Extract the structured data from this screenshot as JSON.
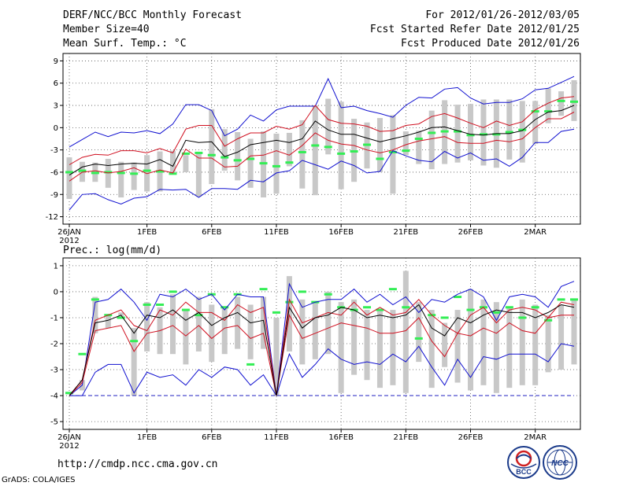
{
  "header": {
    "title": "DERF/NCC/BCC Monthly Forecast",
    "member_size": "Member Size=40",
    "variable": "Mean Surf. Temp.: °C",
    "period": "For 2012/01/26-2012/03/05",
    "started": "Fcst Started Refer Date 2012/01/25",
    "produced": "Fcst Produced Date 2012/01/26"
  },
  "footer": {
    "url": "http://cmdp.ncc.cma.gov.cn",
    "credit": "GrADS: COLA/IGES",
    "logo_bcc": "BCC",
    "logo_ncc": "NCC"
  },
  "colors": {
    "blue": "#1010d0",
    "red": "#d01020",
    "black": "#000000",
    "green": "#33ee55",
    "gray": "#c8c8c8",
    "dashed": "#2020c0"
  },
  "chart_data": [
    {
      "type": "ensemble-boxplot",
      "title": "Mean Surf. Temp.: °C",
      "ylim": [
        -13,
        10
      ],
      "yticks": [
        9,
        6,
        3,
        0,
        -3,
        -6,
        -9,
        -12
      ],
      "xticks": [
        {
          "day": 0,
          "label": "26JAN"
        },
        {
          "day": 6,
          "label": "1FEB"
        },
        {
          "day": 11,
          "label": "6FEB"
        },
        {
          "day": 16,
          "label": "11FEB"
        },
        {
          "day": 21,
          "label": "16FEB"
        },
        {
          "day": 26,
          "label": "21FEB"
        },
        {
          "day": 31,
          "label": "26FEB"
        },
        {
          "day": 36,
          "label": "2MAR"
        }
      ],
      "year_label": "2012",
      "days": [
        0,
        1,
        2,
        3,
        4,
        5,
        6,
        7,
        8,
        9,
        10,
        11,
        12,
        13,
        14,
        15,
        16,
        17,
        18,
        19,
        20,
        21,
        22,
        23,
        24,
        25,
        26,
        27,
        28,
        29,
        30,
        31,
        32,
        33,
        34,
        35,
        36,
        37,
        38,
        39
      ],
      "max": [
        -2.6,
        -1.6,
        -0.6,
        -1.2,
        -0.6,
        -0.7,
        -0.4,
        -0.8,
        0.5,
        3.1,
        3.1,
        2.3,
        -1.1,
        -0.2,
        1.7,
        0.9,
        2.4,
        2.9,
        2.9,
        2.9,
        6.6,
        2.7,
        2.9,
        2.3,
        1.9,
        1.4,
        3.0,
        4.1,
        4.0,
        5.2,
        5.4,
        4.0,
        3.2,
        3.4,
        3.4,
        3.9,
        5.1,
        5.3,
        6.1,
        6.9
      ],
      "p75": [
        -5.0,
        -4.0,
        -3.6,
        -3.7,
        -3.1,
        -3.1,
        -3.4,
        -2.8,
        -3.4,
        -0.2,
        0.3,
        0.3,
        -2.5,
        -1.5,
        -0.7,
        -0.7,
        0.2,
        -0.2,
        0.4,
        3.0,
        1.1,
        0.6,
        0.5,
        0.2,
        -0.5,
        -0.4,
        0.3,
        0.5,
        1.5,
        1.9,
        1.3,
        0.6,
        0.0,
        0.9,
        0.3,
        0.8,
        2.4,
        3.3,
        4.0,
        4.2
      ],
      "mean": [
        -6.4,
        -5.3,
        -4.9,
        -5.1,
        -4.9,
        -4.8,
        -4.9,
        -4.3,
        -5.2,
        -1.7,
        -2.0,
        -1.9,
        -3.9,
        -3.3,
        -2.3,
        -2.0,
        -1.7,
        -2.0,
        -1.5,
        0.9,
        -0.3,
        -0.9,
        -0.9,
        -1.4,
        -1.9,
        -1.5,
        -1.1,
        -0.6,
        0.0,
        0.1,
        -0.4,
        -0.9,
        -1.0,
        -0.8,
        -0.8,
        -0.4,
        1.1,
        2.1,
        2.3,
        3.0
      ],
      "p25": [
        -7.2,
        -6.0,
        -5.8,
        -6.1,
        -5.9,
        -5.4,
        -6.2,
        -5.7,
        -6.1,
        -2.9,
        -4.1,
        -4.1,
        -5.3,
        -5.2,
        -3.8,
        -3.7,
        -3.1,
        -3.7,
        -2.4,
        -0.7,
        -1.7,
        -2.2,
        -2.4,
        -3.0,
        -3.4,
        -3.0,
        -2.3,
        -1.8,
        -1.5,
        -1.2,
        -2.0,
        -2.1,
        -2.1,
        -1.7,
        -1.9,
        -1.5,
        0.0,
        1.2,
        1.2,
        2.1
      ],
      "min": [
        -11.1,
        -9.0,
        -8.9,
        -9.7,
        -10.3,
        -9.5,
        -9.3,
        -8.3,
        -8.4,
        -8.3,
        -9.4,
        -8.2,
        -8.2,
        -8.3,
        -7.1,
        -7.3,
        -6.1,
        -5.8,
        -4.4,
        -5.0,
        -5.6,
        -4.5,
        -5.1,
        -6.1,
        -5.9,
        -3.1,
        -3.8,
        -4.4,
        -4.6,
        -3.2,
        -4.1,
        -3.4,
        -4.4,
        -4.2,
        -5.2,
        -4.0,
        -2.0,
        -2.0,
        -0.5,
        -0.2
      ],
      "box_top": [
        -4.0,
        -4.6,
        -4.7,
        -4.2,
        -4.6,
        -4.7,
        -3.7,
        -3.2,
        -3.1,
        -3.7,
        -3.3,
        2.5,
        -0.2,
        -0.6,
        -1.5,
        -0.5,
        -0.8,
        -0.7,
        1.0,
        3.0,
        3.9,
        3.5,
        1.2,
        0.7,
        1.3,
        1.7,
        -0.5,
        -0.4,
        2.3,
        3.7,
        3.1,
        3.2,
        3.8,
        3.8,
        3.8,
        3.6,
        3.6,
        5.3,
        4.9,
        6.4
      ],
      "box_bottom": [
        -9.6,
        -7.3,
        -7.3,
        -8.1,
        -9.4,
        -8.4,
        -8.6,
        -8.6,
        -6.1,
        -6.0,
        -9.3,
        -7.6,
        -5.8,
        -7.1,
        -8.1,
        -9.4,
        -8.9,
        -5.2,
        -8.2,
        -9.1,
        -3.6,
        -8.3,
        -7.3,
        -5.5,
        -6.0,
        -8.9,
        -3.7,
        -4.9,
        -5.6,
        -4.9,
        -4.7,
        -4.4,
        -5.1,
        -5.4,
        -4.3,
        -4.7,
        -2.2,
        0.6,
        1.6,
        0.9
      ],
      "climatology": [
        -6.0,
        -5.8,
        -6.1,
        -6.0,
        -6.1,
        -6.2,
        -5.8,
        -5.9,
        -6.2,
        -3.5,
        -3.4,
        -3.7,
        -4.0,
        -4.4,
        -4.2,
        -4.8,
        -5.2,
        -4.7,
        -3.3,
        -2.4,
        -2.6,
        -3.5,
        -3.2,
        -2.3,
        -4.2,
        -3.3,
        -3.1,
        -1.5,
        -0.7,
        -0.5,
        -0.5,
        -1.0,
        -0.9,
        -0.9,
        -0.6,
        -0.3,
        2.2,
        2.2,
        3.6,
        3.5
      ]
    },
    {
      "type": "ensemble-boxplot",
      "title": "Prec.: log(mm/d)",
      "ylim": [
        -5.3,
        1.3
      ],
      "yticks": [
        1,
        0,
        -1,
        -2,
        -3,
        -4,
        -5
      ],
      "xticks": [
        {
          "day": 0,
          "label": "26JAN"
        },
        {
          "day": 6,
          "label": "1FEB"
        },
        {
          "day": 11,
          "label": "6FEB"
        },
        {
          "day": 16,
          "label": "11FEB"
        },
        {
          "day": 21,
          "label": "16FEB"
        },
        {
          "day": 26,
          "label": "21FEB"
        },
        {
          "day": 31,
          "label": "26FEB"
        },
        {
          "day": 36,
          "label": "2MAR"
        }
      ],
      "year_label": "2012",
      "reference_line": -4,
      "days": [
        0,
        1,
        2,
        3,
        4,
        5,
        6,
        7,
        8,
        9,
        10,
        11,
        12,
        13,
        14,
        15,
        16,
        17,
        18,
        19,
        20,
        21,
        22,
        23,
        24,
        25,
        26,
        27,
        28,
        29,
        30,
        31,
        32,
        33,
        34,
        35,
        36,
        37,
        38,
        39
      ],
      "max": [
        -4.0,
        -3.6,
        -0.4,
        -0.3,
        0.1,
        -0.4,
        -1.1,
        -0.1,
        -0.2,
        0.1,
        -0.3,
        -0.1,
        -0.7,
        -0.1,
        -0.2,
        -0.2,
        -4.0,
        0.3,
        -0.6,
        -0.4,
        -0.3,
        -0.3,
        0.1,
        -0.4,
        -0.1,
        -0.5,
        -0.2,
        -0.8,
        -0.3,
        -0.4,
        -0.1,
        0.1,
        -0.2,
        -1.1,
        -0.2,
        -0.1,
        -0.2,
        -0.6,
        0.2,
        0.4
      ],
      "p75": [
        -4.0,
        -3.4,
        -1.1,
        -0.9,
        -0.7,
        -1.3,
        -1.5,
        -0.7,
        -0.9,
        -0.4,
        -0.8,
        -0.8,
        -1.1,
        -0.5,
        -0.8,
        -0.6,
        -4.0,
        -0.3,
        -1.2,
        -1.0,
        -0.8,
        -0.9,
        -0.4,
        -0.9,
        -0.6,
        -0.9,
        -0.8,
        -0.3,
        -0.9,
        -1.3,
        -1.6,
        -0.9,
        -0.6,
        -1.2,
        -0.7,
        -0.6,
        -0.7,
        -1.0,
        -0.4,
        -0.5
      ],
      "mean": [
        -4.0,
        -3.4,
        -1.2,
        -1.1,
        -0.9,
        -1.6,
        -0.9,
        -1.0,
        -0.7,
        -1.1,
        -0.8,
        -1.3,
        -1.0,
        -0.8,
        -1.2,
        -1.1,
        -4.0,
        -0.6,
        -1.4,
        -1.0,
        -0.9,
        -0.6,
        -0.7,
        -1.0,
        -0.9,
        -1.0,
        -0.9,
        -0.5,
        -1.4,
        -1.7,
        -1.0,
        -1.2,
        -0.9,
        -0.7,
        -0.8,
        -0.8,
        -1.0,
        -0.8,
        -0.5,
        -0.6
      ],
      "p25": [
        -4.0,
        -3.5,
        -1.5,
        -1.4,
        -1.3,
        -2.3,
        -1.6,
        -1.5,
        -1.3,
        -1.7,
        -1.3,
        -1.8,
        -1.4,
        -1.3,
        -1.8,
        -1.6,
        -4.0,
        -0.9,
        -1.8,
        -1.6,
        -1.4,
        -1.2,
        -1.3,
        -1.4,
        -1.6,
        -1.6,
        -1.5,
        -1.0,
        -1.9,
        -2.5,
        -1.6,
        -1.7,
        -1.4,
        -1.6,
        -1.2,
        -1.5,
        -1.6,
        -1.0,
        -0.9,
        -0.9
      ],
      "min": [
        -4.0,
        -4.0,
        -3.1,
        -2.8,
        -2.8,
        -3.9,
        -3.1,
        -3.3,
        -3.2,
        -3.6,
        -3.0,
        -3.3,
        -2.9,
        -3.0,
        -3.6,
        -3.2,
        -4.0,
        -2.4,
        -3.3,
        -2.8,
        -2.2,
        -2.6,
        -2.8,
        -2.7,
        -2.8,
        -2.4,
        -2.7,
        -2.1,
        -2.9,
        -3.6,
        -2.6,
        -3.3,
        -2.5,
        -2.6,
        -2.4,
        -2.4,
        -2.4,
        -2.7,
        -2.0,
        -2.1
      ],
      "box_top": [
        -4.0,
        -3.4,
        -0.2,
        -0.9,
        -0.8,
        -1.4,
        -0.4,
        -0.6,
        -0.1,
        -0.7,
        -0.2,
        -0.5,
        -0.6,
        -0.2,
        -0.5,
        -0.2,
        -1.0,
        0.6,
        -0.3,
        -0.4,
        0.0,
        -0.4,
        -0.3,
        -0.7,
        -0.7,
        -0.7,
        0.8,
        -0.4,
        -0.7,
        -1.2,
        -0.7,
        0.1,
        -0.3,
        -0.4,
        -0.6,
        -0.3,
        -0.5,
        -0.9,
        -0.5,
        -0.3
      ],
      "box_bottom": [
        -4.0,
        -3.8,
        -1.6,
        -1.4,
        -1.0,
        -4.0,
        -2.3,
        -2.4,
        -2.4,
        -2.8,
        -2.3,
        -2.7,
        -2.4,
        -2.2,
        -2.6,
        -2.2,
        -4.0,
        -2.3,
        -2.8,
        -2.6,
        -2.4,
        -3.9,
        -3.2,
        -3.4,
        -3.7,
        -3.6,
        -3.9,
        -2.7,
        -3.7,
        -2.9,
        -3.5,
        -3.8,
        -3.6,
        -3.9,
        -3.7,
        -3.6,
        -3.6,
        -3.1,
        -3.0,
        -2.8
      ],
      "climatology": [
        -3.9,
        -2.4,
        -0.3,
        -0.9,
        -1.0,
        -1.9,
        -0.5,
        -0.5,
        0.0,
        -0.7,
        -0.9,
        -0.1,
        -0.6,
        -0.1,
        -2.8,
        0.1,
        -0.8,
        -0.4,
        0.0,
        -0.4,
        -0.1,
        -0.6,
        -0.7,
        -0.6,
        -0.7,
        0.1,
        -0.6,
        -1.8,
        -0.9,
        -1.0,
        -0.2,
        -0.7,
        -0.6,
        -0.8,
        -0.6,
        -1.0,
        -0.6,
        -1.1,
        -0.3,
        -0.3
      ]
    }
  ],
  "panel2_label": "Prec.: log(mm/d)"
}
